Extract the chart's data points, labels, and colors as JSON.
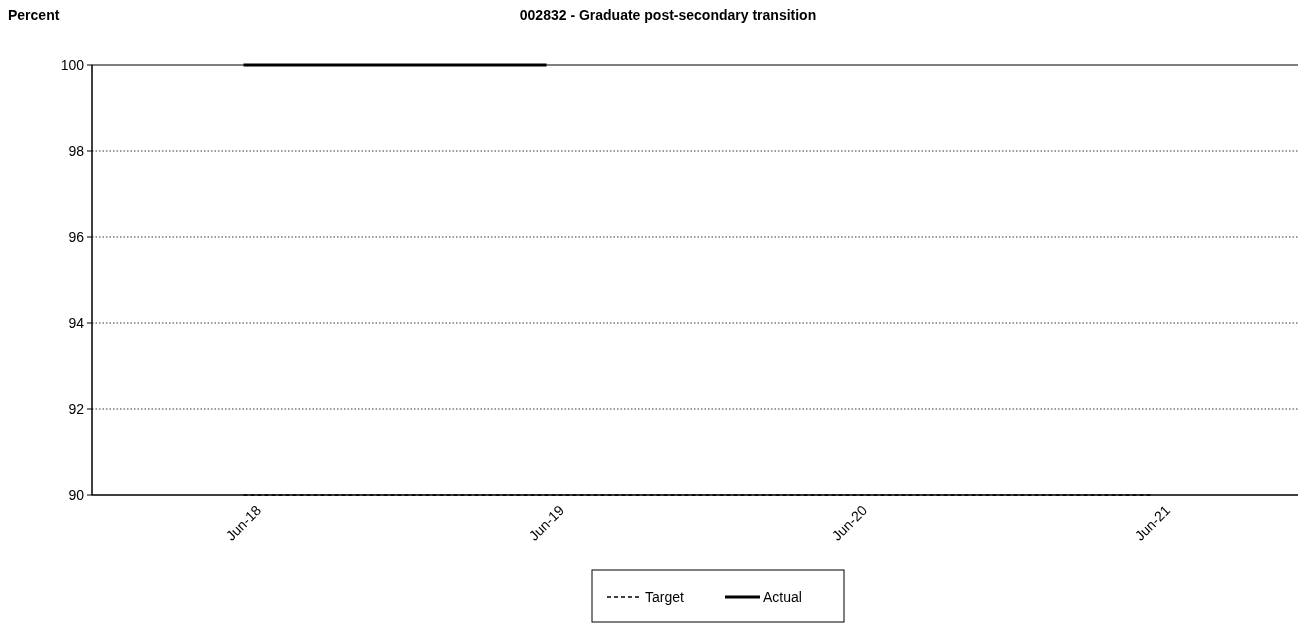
{
  "chart_data": {
    "type": "line",
    "title": "002832 - Graduate post-secondary transition",
    "ylabel": "Percent",
    "categories": [
      "Jun-18",
      "Jun-19",
      "Jun-20",
      "Jun-21"
    ],
    "series": [
      {
        "name": "Target",
        "color": "#000000",
        "line_style": "dashed",
        "values": [
          90,
          90,
          90,
          90
        ]
      },
      {
        "name": "Actual",
        "color": "#000000",
        "line_style": "solid",
        "values": [
          100,
          100,
          null,
          null
        ]
      }
    ],
    "ylim": [
      90,
      100
    ],
    "yticks": [
      90,
      92,
      94,
      96,
      98,
      100
    ],
    "grid": "y",
    "legend": "bottom",
    "marker": "none"
  }
}
